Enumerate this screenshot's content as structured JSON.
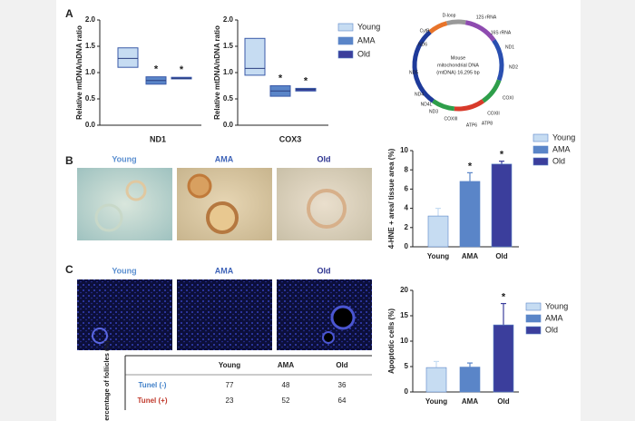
{
  "panel_labels": [
    "A",
    "B",
    "C"
  ],
  "legend": [
    {
      "name": "Young",
      "color": "#c6dcf2"
    },
    {
      "name": "AMA",
      "color": "#5a85c8"
    },
    {
      "name": "Old",
      "color": "#3b3e9c"
    }
  ],
  "chart_data": [
    {
      "type": "range",
      "x_label": "ND1",
      "y_label": "Relative mtDNA/nDNA ratio",
      "ylim": [
        0,
        2
      ],
      "yticks": [
        {
          "value": 0,
          "label": "0.0"
        },
        {
          "value": 0.5,
          "label": "0.5"
        },
        {
          "value": 1,
          "label": "1.0"
        },
        {
          "value": 1.5,
          "label": "1.5"
        },
        {
          "value": 2,
          "label": "2.0"
        }
      ],
      "boxes": [
        {
          "low": 1.1,
          "median": 1.27,
          "high": 1.47,
          "color": "#c6dcf2"
        },
        {
          "low": 0.78,
          "median": 0.85,
          "high": 0.92,
          "color": "#5a85c8",
          "marker": "*"
        },
        {
          "low": 0.88,
          "median": 0.89,
          "high": 0.91,
          "color": "#3b3e9c",
          "marker": "*"
        }
      ]
    },
    {
      "type": "range",
      "x_label": "COX3",
      "y_label": "Relative mtDNA/nDNA ratio",
      "ylim": [
        0,
        2
      ],
      "yticks": [
        {
          "value": 0,
          "label": "0.0"
        },
        {
          "value": 0.5,
          "label": "0.5"
        },
        {
          "value": 1,
          "label": "1.0"
        },
        {
          "value": 1.5,
          "label": "1.5"
        },
        {
          "value": 2,
          "label": "2.0"
        }
      ],
      "boxes": [
        {
          "low": 0.95,
          "median": 1.08,
          "high": 1.65,
          "color": "#c6dcf2"
        },
        {
          "low": 0.55,
          "median": 0.65,
          "high": 0.75,
          "color": "#5a85c8",
          "marker": "*"
        },
        {
          "low": 0.65,
          "median": 0.68,
          "high": 0.7,
          "color": "#3b3e9c",
          "marker": "*"
        }
      ]
    },
    {
      "type": "bar",
      "y_label": "4-HNE + area/ tissue area (%)",
      "categories": [
        "Young",
        "AMA",
        "Old"
      ],
      "values": [
        3.2,
        6.8,
        8.6
      ],
      "errors": [
        0.8,
        0.9,
        0.3
      ],
      "markers": [
        null,
        "*",
        "*"
      ],
      "colors": [
        "#c6dcf2",
        "#5a85c8",
        "#3b3e9c"
      ],
      "ylim": [
        0,
        10
      ],
      "yticks": [
        0,
        2,
        4,
        6,
        8,
        10
      ]
    },
    {
      "type": "bar",
      "y_label": "Apoptotic cells (%)",
      "categories": [
        "Young",
        "AMA",
        "Old"
      ],
      "values": [
        4.8,
        4.9,
        13.2
      ],
      "errors": [
        1.2,
        0.8,
        4.2
      ],
      "markers": [
        null,
        null,
        "*"
      ],
      "colors": [
        "#c6dcf2",
        "#5a85c8",
        "#3b3e9c"
      ],
      "ylim": [
        0,
        20
      ],
      "yticks": [
        0,
        5,
        10,
        15,
        20
      ]
    }
  ],
  "mtdna": {
    "title": [
      "Mouse",
      "mitochondrial DNA",
      "(mtDNA) 16,295 bp"
    ],
    "genes": [
      "D-loop",
      "12S rRNA",
      "16S rRNA",
      "ND1",
      "ND2",
      "COXI",
      "COXII",
      "ATP8",
      "ATP6",
      "COXIII",
      "ND3",
      "ND4L",
      "ND4",
      "ND5",
      "ND6",
      "CytB"
    ]
  },
  "micrographs_b": [
    "Young",
    "AMA",
    "Old"
  ],
  "micrographs_c": [
    "Young",
    "AMA",
    "Old"
  ],
  "table": {
    "row_header": "Percentage of follicles (%)",
    "columns": [
      "Young",
      "AMA",
      "Old"
    ],
    "rows": [
      {
        "label": "Tunel (-)",
        "values": [
          77,
          48,
          36
        ]
      },
      {
        "label": "Tunel (+)",
        "values": [
          23,
          52,
          64
        ]
      }
    ]
  }
}
